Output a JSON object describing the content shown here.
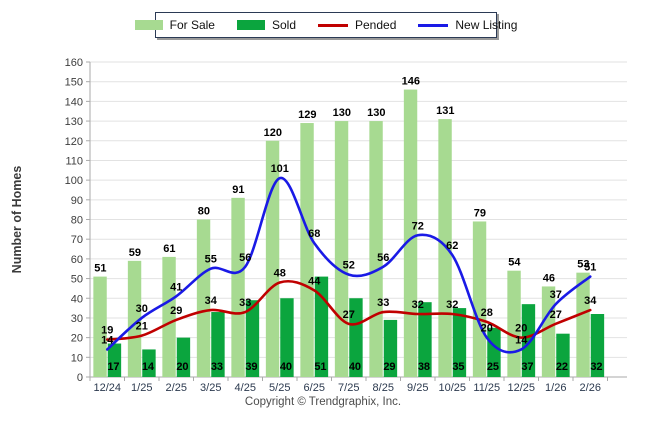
{
  "legend": {
    "items": [
      {
        "label": "For Sale",
        "type": "box",
        "color": "#a7da91"
      },
      {
        "label": "Sold",
        "type": "box",
        "color": "#0ba53e"
      },
      {
        "label": "Pended",
        "type": "line",
        "color": "#c00000"
      },
      {
        "label": "New Listing",
        "type": "line",
        "color": "#1a1ae6"
      }
    ]
  },
  "y_axis_title": "Number of Homes",
  "footer_text": "Copyright © Trendgraphix, Inc.",
  "chart_data": {
    "type": "bar",
    "subtype": "grouped bars with smoothed overlay lines",
    "title": "",
    "xlabel": "",
    "ylabel": "Number of Homes",
    "ylim": [
      0,
      160
    ],
    "ytick_step": 10,
    "grid": true,
    "legend_position": "top-center",
    "categories": [
      "12/24",
      "1/25",
      "2/25",
      "3/25",
      "4/25",
      "5/25",
      "6/25",
      "7/25",
      "8/25",
      "9/25",
      "10/25",
      "11/25",
      "12/25",
      "1/26",
      "2/26"
    ],
    "series": [
      {
        "name": "For Sale",
        "type": "bar",
        "color": "#a7da91",
        "values": [
          51,
          59,
          61,
          80,
          91,
          120,
          129,
          130,
          130,
          146,
          131,
          79,
          54,
          46,
          53
        ]
      },
      {
        "name": "Sold",
        "type": "bar",
        "color": "#0ba53e",
        "values": [
          17,
          14,
          20,
          33,
          39,
          40,
          51,
          40,
          29,
          38,
          35,
          25,
          37,
          22,
          32
        ]
      },
      {
        "name": "Pended",
        "type": "line",
        "color": "#c00000",
        "values": [
          19,
          21,
          29,
          34,
          33,
          48,
          44,
          27,
          33,
          32,
          32,
          28,
          20,
          27,
          34
        ]
      },
      {
        "name": "New Listing",
        "type": "line",
        "color": "#1a1ae6",
        "values": [
          14,
          30,
          41,
          55,
          56,
          101,
          68,
          52,
          56,
          72,
          62,
          20,
          14,
          37,
          51
        ]
      }
    ],
    "label_colors": {
      "values": "#000000",
      "x_ticks": "#2c3a4f",
      "y_ticks": "#3d3d3d"
    },
    "grid_color": "#e2e2e2",
    "axis_color": "#aaaaaa"
  }
}
